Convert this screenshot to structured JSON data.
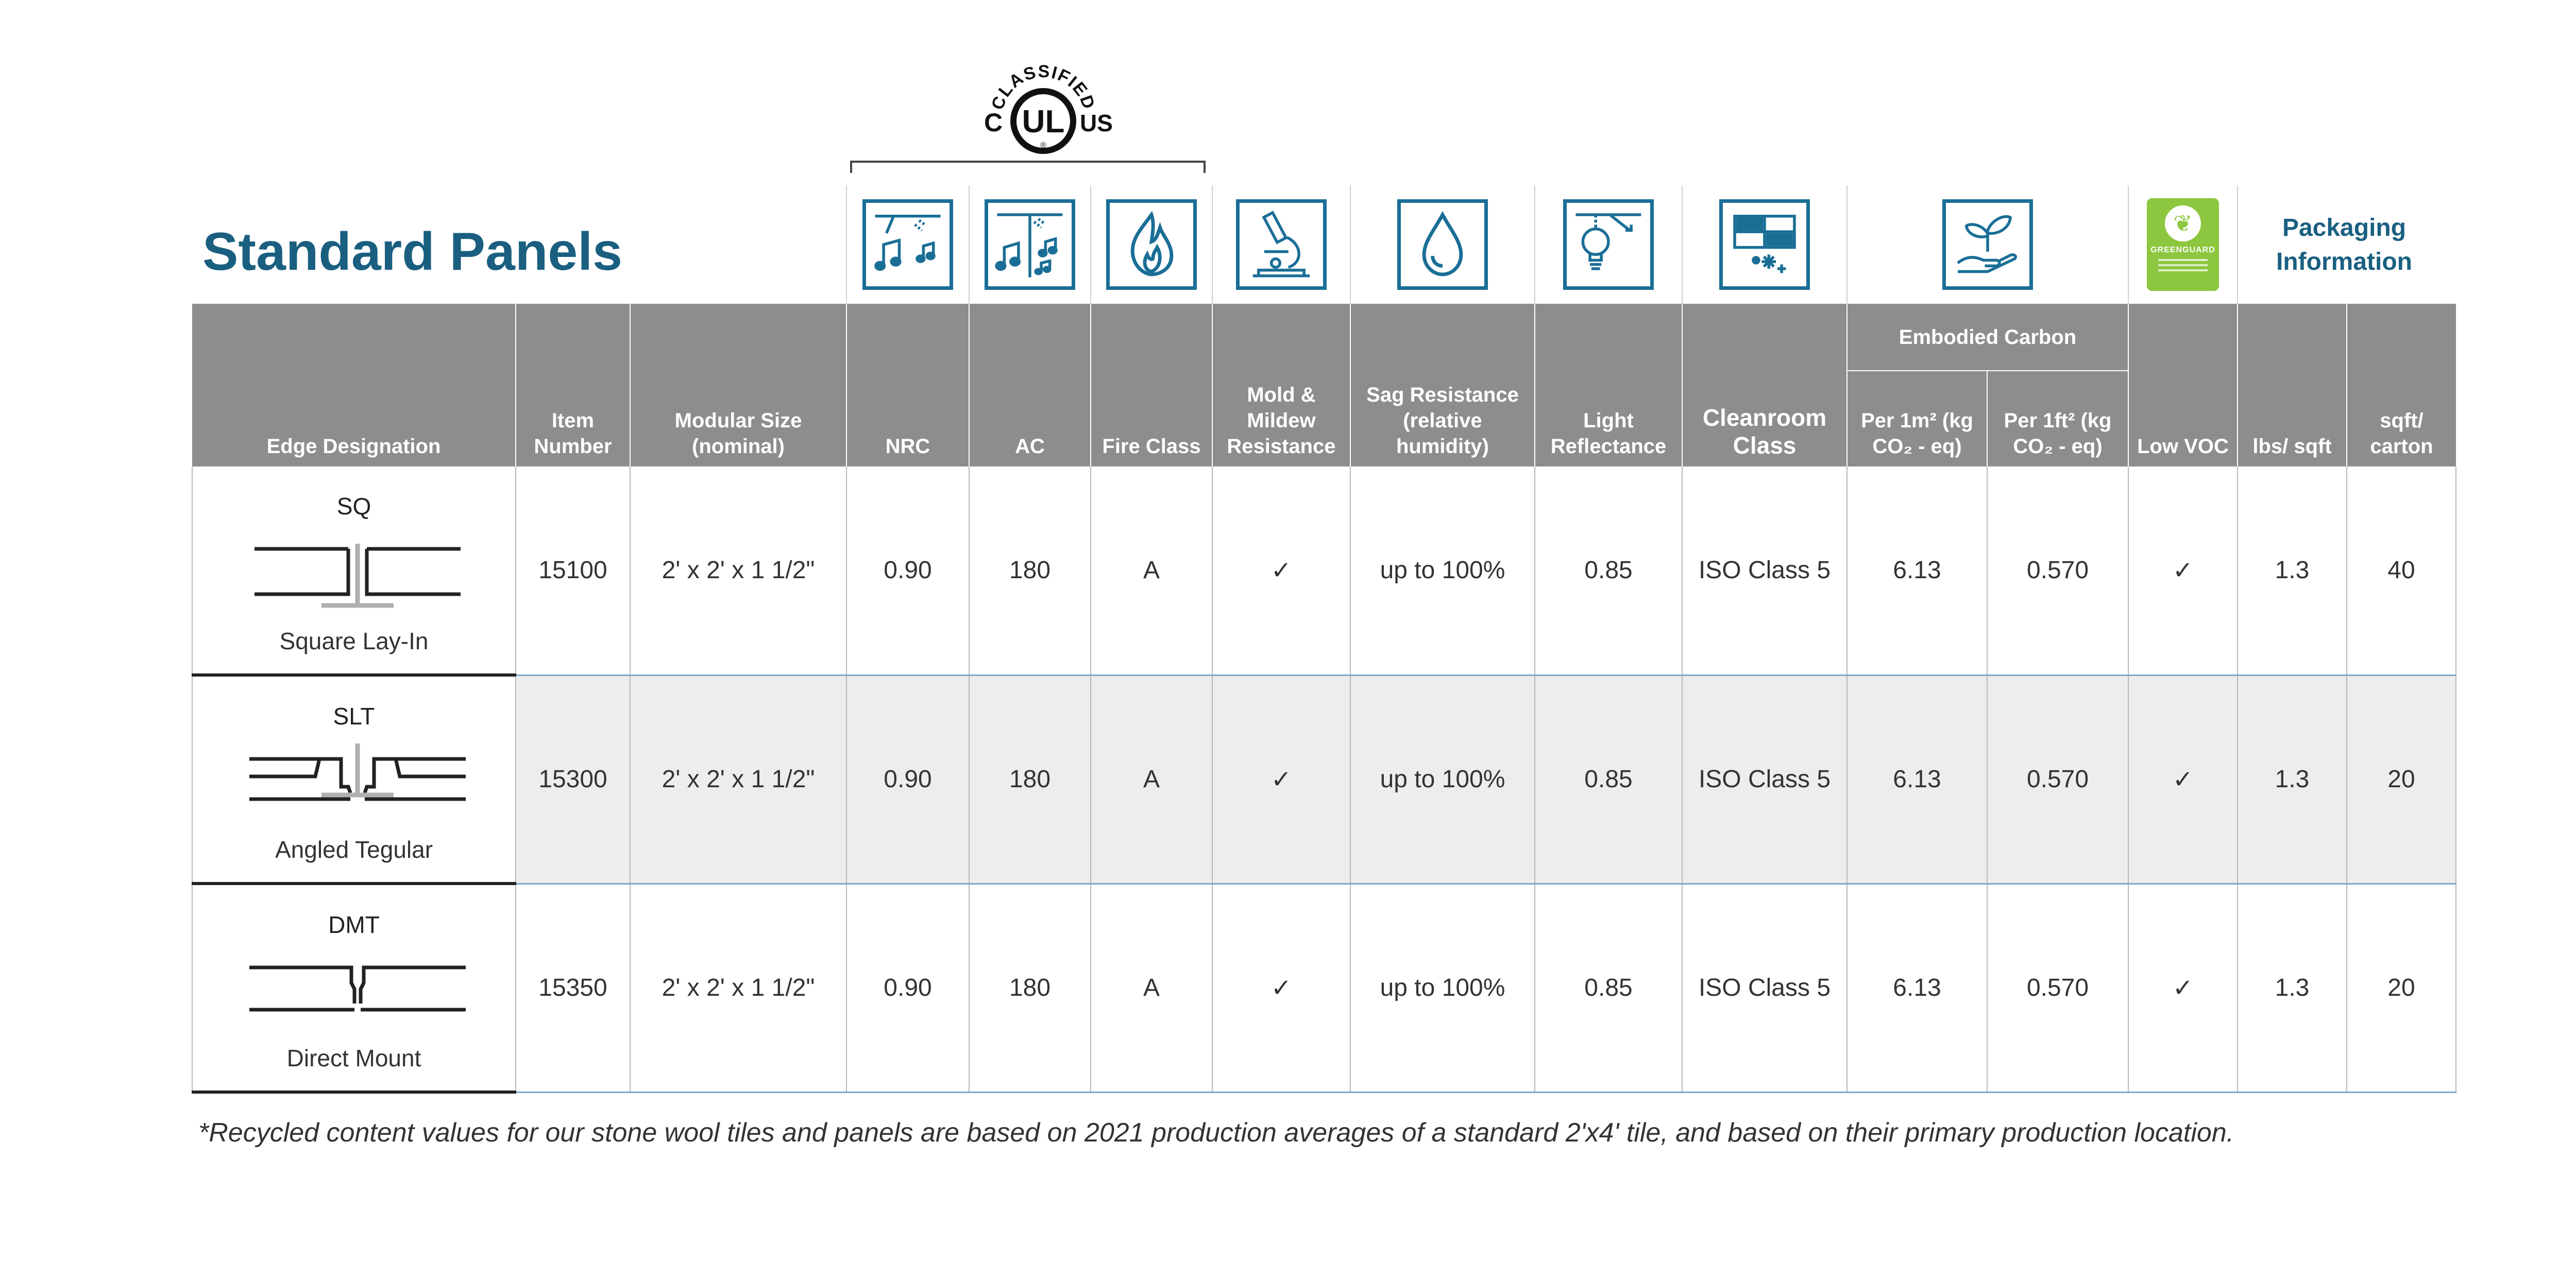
{
  "title": "Standard Panels",
  "ul_mark": {
    "top": "CLASSIFIED",
    "left": "C",
    "center": "UL",
    "right": "US",
    "registered": "®"
  },
  "packaging_header": "Packaging Information",
  "icons": {
    "nrc": "acoustic-absorption-icon",
    "ac": "acoustic-attenuation-icon",
    "fire": "flame-icon",
    "mold": "microscope-icon",
    "sag": "water-drop-icon",
    "light": "light-bulb-icon",
    "cleanroom": "cleanroom-icon",
    "carbon": "plant-in-hand-icon",
    "voc": "greenguard-logo"
  },
  "greenguard_text": "GREENGUARD",
  "headers": {
    "edge": "Edge Designation",
    "item": "Item Number",
    "size": "Modular Size (nominal)",
    "nrc": "NRC",
    "ac": "AC",
    "fire": "Fire Class",
    "mold": "Mold & Mildew Resistance",
    "sag": "Sag Resistance (relative humidity)",
    "light": "Light Reflectance",
    "cleanroom": "Cleanroom Class",
    "embodied": "Embodied Carbon",
    "per_m2": "Per 1m² (kg CO₂ - eq)",
    "per_ft2": "Per 1ft² (kg CO₂ - eq)",
    "voc": "Low VOC",
    "lbs": "lbs/ sqft",
    "sqft": "sqft/ carton"
  },
  "rows": [
    {
      "edge_code": "SQ",
      "edge_name": "Square Lay-In",
      "item": "15100",
      "size": "2' x 2' x 1 1/2\"",
      "nrc": "0.90",
      "ac": "180",
      "fire": "A",
      "mold": "✓",
      "sag": "up to 100%",
      "light": "0.85",
      "cleanroom": "ISO Class 5",
      "per_m2": "6.13",
      "per_ft2": "0.570",
      "voc": "✓",
      "lbs": "1.3",
      "sqft": "40"
    },
    {
      "edge_code": "SLT",
      "edge_name": "Angled Tegular",
      "item": "15300",
      "size": "2' x 2' x 1 1/2\"",
      "nrc": "0.90",
      "ac": "180",
      "fire": "A",
      "mold": "✓",
      "sag": "up to 100%",
      "light": "0.85",
      "cleanroom": "ISO Class 5",
      "per_m2": "6.13",
      "per_ft2": "0.570",
      "voc": "✓",
      "lbs": "1.3",
      "sqft": "20"
    },
    {
      "edge_code": "DMT",
      "edge_name": "Direct Mount",
      "item": "15350",
      "size": "2' x 2' x 1 1/2\"",
      "nrc": "0.90",
      "ac": "180",
      "fire": "A",
      "mold": "✓",
      "sag": "up to 100%",
      "light": "0.85",
      "cleanroom": "ISO Class 5",
      "per_m2": "6.13",
      "per_ft2": "0.570",
      "voc": "✓",
      "lbs": "1.3",
      "sqft": "20"
    }
  ],
  "footnote": "*Recycled content values for our stone wool tiles and panels are based on 2021 production averages of a standard 2'x4' tile, and based on their primary production location.",
  "colors": {
    "brand_blue": "#1a5f80",
    "icon_blue": "#1a6e96",
    "header_gray": "#8c8d8f",
    "row_shade": "#ededed",
    "greenguard_green": "#8dc63f"
  }
}
